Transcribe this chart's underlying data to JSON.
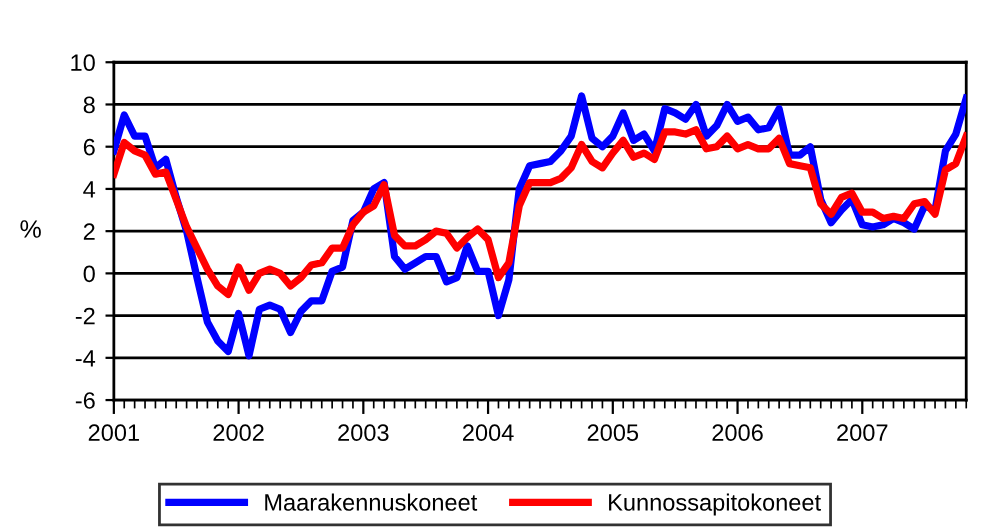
{
  "chart_data": {
    "type": "line",
    "categories": [
      "2001",
      null,
      null,
      null,
      null,
      null,
      null,
      null,
      null,
      null,
      null,
      null,
      "2002",
      null,
      null,
      null,
      null,
      null,
      null,
      null,
      null,
      null,
      null,
      null,
      "2003",
      null,
      null,
      null,
      null,
      null,
      null,
      null,
      null,
      null,
      null,
      null,
      "2004",
      null,
      null,
      null,
      null,
      null,
      null,
      null,
      null,
      null,
      null,
      null,
      "2005",
      null,
      null,
      null,
      null,
      null,
      null,
      null,
      null,
      null,
      null,
      null,
      "2006",
      null,
      null,
      null,
      null,
      null,
      null,
      null,
      null,
      null,
      null,
      null,
      "2007",
      null,
      null,
      null,
      null,
      null,
      null,
      null,
      null,
      null,
      null
    ],
    "series": [
      {
        "name": "Maarakennuskoneet",
        "color": "#0000ff",
        "values": [
          5.8,
          7.5,
          6.5,
          6.5,
          5.0,
          5.4,
          3.6,
          2.0,
          -0.2,
          -2.3,
          -3.2,
          -3.7,
          -1.9,
          -3.9,
          -1.7,
          -1.5,
          -1.7,
          -2.8,
          -1.8,
          -1.3,
          -1.3,
          0.1,
          0.3,
          2.5,
          2.9,
          4.0,
          4.3,
          0.8,
          0.2,
          0.5,
          0.8,
          0.8,
          -0.4,
          -0.2,
          1.3,
          0.1,
          0.1,
          -2.0,
          -0.3,
          4.0,
          5.1,
          5.2,
          5.3,
          5.8,
          6.5,
          8.4,
          6.4,
          6.0,
          6.5,
          7.6,
          6.3,
          6.6,
          5.8,
          7.8,
          7.6,
          7.3,
          8.0,
          6.5,
          7.0,
          8.0,
          7.2,
          7.4,
          6.8,
          6.9,
          7.8,
          5.6,
          5.6,
          6.0,
          3.5,
          2.4,
          3.0,
          3.5,
          2.3,
          2.2,
          2.3,
          2.6,
          2.4,
          2.1,
          3.2,
          3.0,
          5.8,
          6.6,
          8.3
        ]
      },
      {
        "name": "Kunnossapitokoneet",
        "color": "#ff0000",
        "values": [
          4.7,
          6.2,
          5.8,
          5.6,
          4.7,
          4.8,
          3.5,
          2.2,
          1.2,
          0.2,
          -0.6,
          -1.0,
          0.3,
          -0.8,
          0.0,
          0.2,
          0.0,
          -0.6,
          -0.2,
          0.4,
          0.5,
          1.2,
          1.2,
          2.3,
          2.9,
          3.2,
          4.2,
          1.8,
          1.3,
          1.3,
          1.6,
          2.0,
          1.9,
          1.2,
          1.7,
          2.1,
          1.6,
          -0.2,
          0.5,
          3.2,
          4.3,
          4.3,
          4.3,
          4.5,
          5.0,
          6.1,
          5.3,
          5.0,
          5.7,
          6.3,
          5.5,
          5.7,
          5.4,
          6.7,
          6.7,
          6.6,
          6.8,
          5.9,
          6.0,
          6.5,
          5.9,
          6.1,
          5.9,
          5.9,
          6.4,
          5.2,
          5.1,
          5.0,
          3.3,
          2.8,
          3.6,
          3.8,
          2.9,
          2.9,
          2.6,
          2.7,
          2.6,
          3.3,
          3.4,
          2.8,
          4.9,
          5.2,
          6.5
        ]
      }
    ],
    "ylabel": "%",
    "ylim": [
      -6,
      10
    ],
    "yticks": [
      -6,
      -4,
      -2,
      0,
      2,
      4,
      6,
      8,
      10
    ],
    "grid": "y",
    "legend": "bottom",
    "marker": "none",
    "line_style": "solid"
  }
}
